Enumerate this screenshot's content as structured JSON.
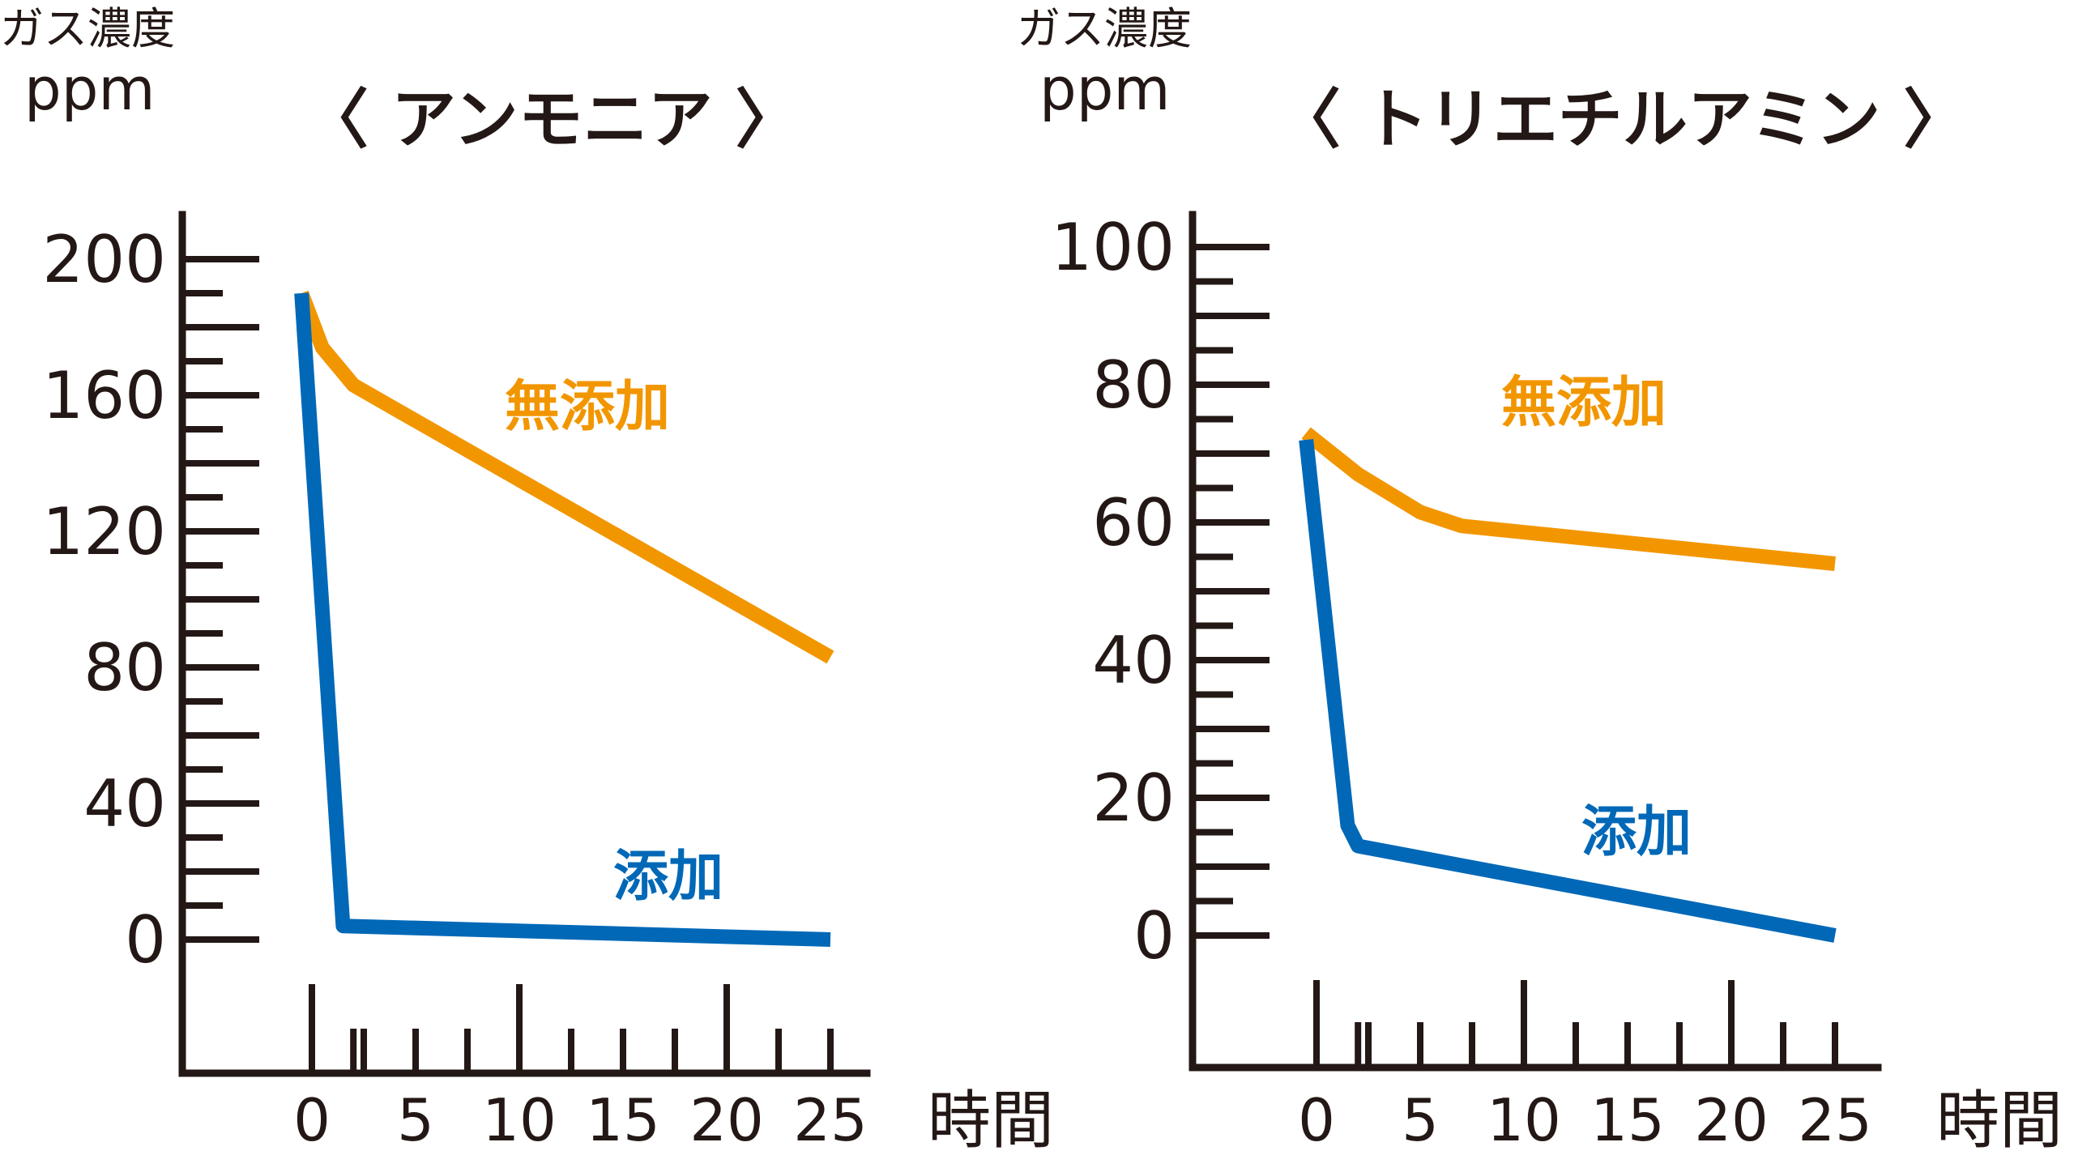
{
  "chart_data": [
    {
      "type": "line",
      "title": "〈 アンモニア 〉",
      "ylabel": "ガス濃度",
      "yunit": "ppm",
      "xlabel": "時間",
      "ylim": [
        0,
        200
      ],
      "xlim": [
        0,
        25
      ],
      "y_ticks": [
        "200",
        "160",
        "120",
        "80",
        "40",
        "0"
      ],
      "y_tick_values": [
        200,
        160,
        120,
        80,
        40,
        0
      ],
      "x_ticks": [
        "0",
        "5",
        "10",
        "15",
        "20",
        "25"
      ],
      "x_tick_values": [
        0,
        5,
        10,
        15,
        20,
        25
      ],
      "series": [
        {
          "name": "無添加",
          "color": "#f29600",
          "points": [
            [
              -0.5,
              190
            ],
            [
              0.5,
              174
            ],
            [
              2,
              163
            ],
            [
              4,
              156
            ],
            [
              25,
              83
            ]
          ]
        },
        {
          "name": "添加",
          "color": "#0068b7",
          "points": [
            [
              -0.5,
              190
            ],
            [
              1.5,
              4
            ],
            [
              25,
              0
            ]
          ]
        }
      ]
    },
    {
      "type": "line",
      "title": "〈 トリエチルアミン 〉",
      "ylabel": "ガス濃度",
      "yunit": "ppm",
      "xlabel": "時間",
      "ylim": [
        0,
        100
      ],
      "xlim": [
        0,
        25
      ],
      "y_ticks": [
        "100",
        "80",
        "60",
        "40",
        "20",
        "0"
      ],
      "y_tick_values": [
        100,
        80,
        60,
        40,
        20,
        0
      ],
      "x_ticks": [
        "0",
        "5",
        "10",
        "15",
        "20",
        "25"
      ],
      "x_tick_values": [
        0,
        5,
        10,
        15,
        20,
        25
      ],
      "series": [
        {
          "name": "無添加",
          "color": "#f29600",
          "points": [
            [
              -0.5,
              73
            ],
            [
              2,
              67
            ],
            [
              5,
              61.5
            ],
            [
              7,
              59.5
            ],
            [
              25,
              54
            ]
          ]
        },
        {
          "name": "添加",
          "color": "#0068b7",
          "points": [
            [
              -0.5,
              72
            ],
            [
              1.5,
              16
            ],
            [
              2,
              13
            ],
            [
              25,
              0
            ]
          ]
        }
      ]
    }
  ]
}
